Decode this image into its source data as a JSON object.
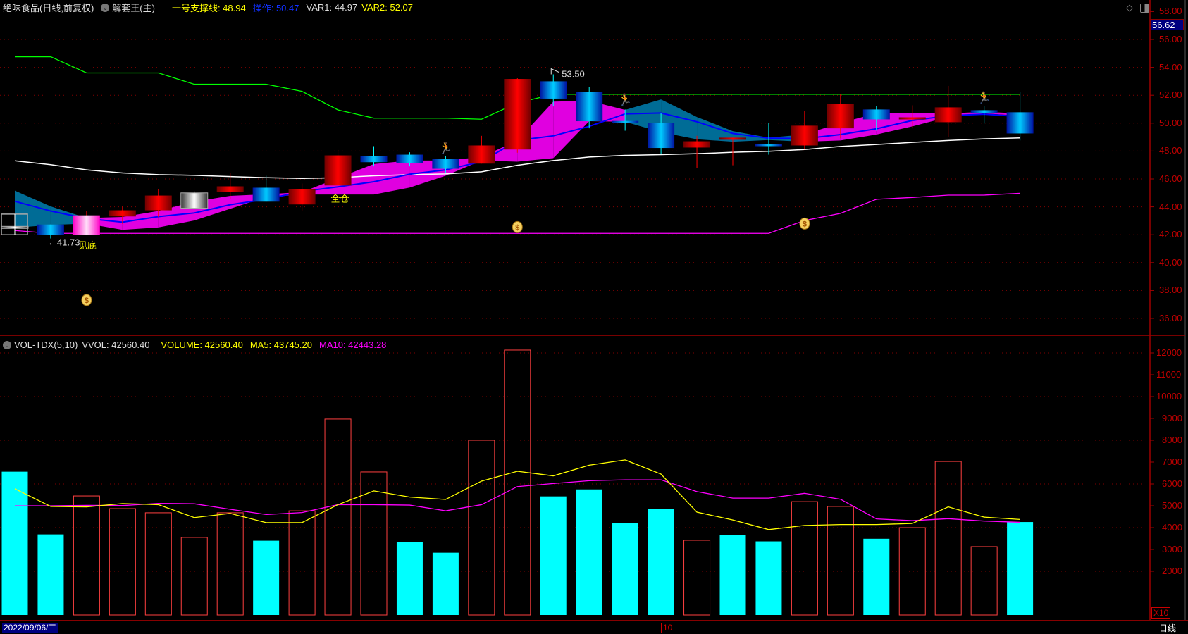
{
  "header": {
    "stock": "绝味食品(日线,前复权)",
    "indicator": "解套王(主)",
    "line1_label": "一号支撑线: 48.94",
    "line2_label": "操作: 50.47",
    "var1_label": "VAR1: 44.97",
    "var2_label": "VAR2: 52.07"
  },
  "vol_header": {
    "name": "VOL-TDX(5,10)",
    "vvol": "VVOL: 42560.40",
    "volume": "VOLUME: 42560.40",
    "ma5": "MA5: 43745.20",
    "ma10": "MA10: 42443.28"
  },
  "last_price": "56.62",
  "price_ticks": [
    "58.00",
    "56.00",
    "54.00",
    "52.00",
    "50.00",
    "48.00",
    "46.00",
    "44.00",
    "42.00",
    "40.00",
    "38.00",
    "36.00"
  ],
  "vol_ticks": [
    "12000",
    "11000",
    "10000",
    "9000",
    "8000",
    "7000",
    "6000",
    "5000",
    "4000",
    "3000",
    "2000"
  ],
  "vol_unit": "X10",
  "bottom": {
    "date": "2022/09/06/二",
    "month_marker": "10",
    "period": "日线"
  },
  "annotations": {
    "low_label": "←41.73",
    "high_label": "53.50",
    "bottom_signal": "见底",
    "full_position": "全仓"
  },
  "colors": {
    "up": "#ff0000",
    "down": "#00c8ff",
    "support": "#ffffff",
    "operate": "#0000ff",
    "var1": "#ff00ff",
    "var2": "#00ff00",
    "vol_up": "#ff4040",
    "vol_down": "#00ffff",
    "ma5": "#ffff00",
    "ma10": "#ff00ff",
    "band_up": "#e000e0",
    "band_down": "#006c96"
  },
  "chart_data": [
    {
      "type": "candlestick",
      "title": "绝味食品(日线,前复权)",
      "ylim": [
        35,
        58.5
      ],
      "candles": [
        {
          "o": 42.6,
          "h": 43.0,
          "l": 42.2,
          "c": 42.5,
          "kind": "gray"
        },
        {
          "o": 42.73,
          "h": 42.73,
          "l": 41.73,
          "c": 42.0,
          "kind": "down"
        },
        {
          "o": 42.0,
          "h": 43.7,
          "l": 42.0,
          "c": 43.39,
          "kind": "pink"
        },
        {
          "o": 43.31,
          "h": 44.03,
          "l": 42.77,
          "c": 43.75,
          "kind": "up"
        },
        {
          "o": 43.75,
          "h": 45.26,
          "l": 43.27,
          "c": 44.81,
          "kind": "up"
        },
        {
          "o": 43.9,
          "h": 45.1,
          "l": 43.85,
          "c": 45.0,
          "kind": "gray"
        },
        {
          "o": 45.08,
          "h": 46.43,
          "l": 44.54,
          "c": 45.47,
          "kind": "up"
        },
        {
          "o": 45.37,
          "h": 46.23,
          "l": 44.37,
          "c": 44.37,
          "kind": "down"
        },
        {
          "o": 44.17,
          "h": 45.67,
          "l": 43.73,
          "c": 45.26,
          "kind": "up"
        },
        {
          "o": 45.53,
          "h": 48.08,
          "l": 45.53,
          "c": 47.69,
          "kind": "up"
        },
        {
          "o": 47.64,
          "h": 48.35,
          "l": 46.9,
          "c": 47.2,
          "kind": "down"
        },
        {
          "o": 47.74,
          "h": 47.91,
          "l": 46.9,
          "c": 47.15,
          "kind": "down"
        },
        {
          "o": 47.44,
          "h": 47.64,
          "l": 46.45,
          "c": 46.73,
          "kind": "down"
        },
        {
          "o": 47.1,
          "h": 49.09,
          "l": 47.1,
          "c": 48.4,
          "kind": "up"
        },
        {
          "o": 48.11,
          "h": 53.22,
          "l": 47.88,
          "c": 53.17,
          "kind": "up"
        },
        {
          "o": 53.0,
          "h": 53.5,
          "l": 51.2,
          "c": 51.76,
          "kind": "down"
        },
        {
          "o": 52.25,
          "h": 52.6,
          "l": 49.63,
          "c": 50.14,
          "kind": "down"
        },
        {
          "o": 50.16,
          "h": 50.98,
          "l": 49.46,
          "c": 50.12,
          "kind": "down"
        },
        {
          "o": 50.02,
          "h": 50.73,
          "l": 47.78,
          "c": 48.22,
          "kind": "down"
        },
        {
          "o": 48.25,
          "h": 49.09,
          "l": 46.78,
          "c": 48.7,
          "kind": "up"
        },
        {
          "o": 48.82,
          "h": 48.96,
          "l": 46.98,
          "c": 48.96,
          "kind": "up"
        },
        {
          "o": 48.5,
          "h": 50.02,
          "l": 47.74,
          "c": 48.48,
          "kind": "down"
        },
        {
          "o": 48.4,
          "h": 50.9,
          "l": 48.11,
          "c": 49.82,
          "kind": "up"
        },
        {
          "o": 49.63,
          "h": 52.1,
          "l": 48.92,
          "c": 51.39,
          "kind": "up"
        },
        {
          "o": 50.98,
          "h": 51.25,
          "l": 49.46,
          "c": 50.27,
          "kind": "down"
        },
        {
          "o": 50.27,
          "h": 51.28,
          "l": 49.63,
          "c": 50.42,
          "kind": "up"
        },
        {
          "o": 50.07,
          "h": 52.67,
          "l": 49.0,
          "c": 51.13,
          "kind": "up"
        },
        {
          "o": 50.93,
          "h": 51.2,
          "l": 49.97,
          "c": 50.73,
          "kind": "down"
        },
        {
          "o": 50.78,
          "h": 52.25,
          "l": 48.76,
          "c": 49.26,
          "kind": "down"
        }
      ],
      "lines": {
        "support": [
          47.3,
          47.02,
          46.65,
          46.43,
          46.31,
          46.26,
          46.17,
          46.09,
          46.04,
          46.09,
          46.23,
          46.31,
          46.36,
          46.51,
          46.98,
          47.32,
          47.57,
          47.69,
          47.74,
          47.81,
          47.91,
          47.98,
          48.11,
          48.33,
          48.47,
          48.62,
          48.76,
          48.87,
          48.94
        ],
        "operate": [
          44.4,
          43.7,
          43.16,
          42.9,
          43.3,
          43.56,
          44.15,
          44.54,
          45.1,
          45.43,
          45.8,
          46.34,
          46.65,
          47.24,
          48.76,
          49.09,
          49.77,
          50.66,
          50.73,
          50.1,
          49.26,
          48.92,
          48.89,
          49.18,
          49.6,
          50.19,
          50.53,
          50.64,
          50.47
        ],
        "var1": [
          42.3,
          42.1,
          42.1,
          42.1,
          42.1,
          42.1,
          42.1,
          42.1,
          42.1,
          42.1,
          42.1,
          42.1,
          42.1,
          42.1,
          42.1,
          42.1,
          42.1,
          42.1,
          42.1,
          42.1,
          42.1,
          42.1,
          43.02,
          43.53,
          44.54,
          44.67,
          44.84,
          44.84,
          44.97
        ],
        "var2": [
          54.76,
          54.76,
          53.6,
          53.6,
          53.6,
          52.79,
          52.79,
          52.79,
          52.28,
          50.95,
          50.36,
          50.36,
          50.36,
          50.28,
          51.45,
          52.07,
          52.07,
          52.07,
          52.07,
          52.07,
          52.07,
          52.07,
          52.07,
          52.07,
          52.07,
          52.07,
          52.07,
          52.07,
          52.07
        ]
      },
      "band": {
        "top": [
          45.16,
          44.03,
          43.2,
          43.27,
          43.7,
          44.37,
          44.79,
          44.9,
          45.05,
          46.06,
          47.07,
          47.32,
          47.32,
          47.57,
          48.76,
          51.54,
          51.6,
          50.95,
          51.7,
          50.44,
          49.43,
          48.96,
          49.18,
          50.02,
          50.7,
          50.73,
          50.7,
          50.81,
          50.7
        ],
        "bottom": [
          42.5,
          42.7,
          42.8,
          42.35,
          42.52,
          43.02,
          43.86,
          44.7,
          44.88,
          44.88,
          44.88,
          45.38,
          46.23,
          47.32,
          47.24,
          47.49,
          50.14,
          50.1,
          49.35,
          48.84,
          48.67,
          48.79,
          48.67,
          48.76,
          49.18,
          49.77,
          50.44,
          50.7,
          50.53
        ],
        "kind": [
          "down",
          "down",
          "up",
          "up",
          "up",
          "up",
          "up",
          "up",
          "up",
          "up",
          "up",
          "up",
          "up",
          "up",
          "up",
          "up",
          "up",
          "down",
          "down",
          "down",
          "down",
          "down",
          "up",
          "up",
          "up",
          "up",
          "up",
          "up",
          "up"
        ]
      },
      "markers": [
        {
          "type": "moneybag",
          "i": 2,
          "price": 37.37
        },
        {
          "type": "moneybag",
          "i": 14,
          "price": 42.6
        },
        {
          "type": "moneybag",
          "i": 22,
          "price": 42.85
        },
        {
          "type": "runner",
          "i": 12,
          "price": 48.25
        },
        {
          "type": "runner",
          "i": 17,
          "price": 51.7
        },
        {
          "type": "runner",
          "i": 27,
          "price": 51.87
        }
      ]
    },
    {
      "type": "bar",
      "title": "VOL-TDX(5,10)",
      "ylabel": "X10",
      "ylim": [
        0,
        12300
      ],
      "values": [
        6560,
        3690,
        5450,
        4870,
        4680,
        3550,
        4680,
        3400,
        4770,
        8970,
        6550,
        3330,
        2850,
        8000,
        12130,
        5430,
        5750,
        4200,
        4850,
        3420,
        3660,
        3370,
        5190,
        4970,
        3490,
        4000,
        7030,
        3130,
        4256
      ],
      "direction": [
        "down",
        "down",
        "up",
        "up",
        "up",
        "up",
        "up",
        "down",
        "up",
        "up",
        "up",
        "down",
        "down",
        "up",
        "up",
        "down",
        "down",
        "down",
        "down",
        "up",
        "down",
        "down",
        "up",
        "up",
        "down",
        "up",
        "up",
        "up",
        "down"
      ],
      "series": [
        {
          "name": "MA5",
          "values": [
            5780,
            4970,
            4950,
            5100,
            5050,
            4460,
            4650,
            4230,
            4230,
            5050,
            5680,
            5400,
            5290,
            6130,
            6580,
            6370,
            6860,
            7100,
            6450,
            4710,
            4350,
            3910,
            4100,
            4140,
            4140,
            4190,
            4950,
            4480,
            4375
          ]
        },
        {
          "name": "MA10",
          "values": [
            5000,
            5000,
            5020,
            5010,
            5110,
            5090,
            4840,
            4600,
            4690,
            5050,
            5050,
            5030,
            4770,
            5050,
            5880,
            6020,
            6150,
            6190,
            6190,
            5650,
            5350,
            5350,
            5570,
            5300,
            4400,
            4320,
            4410,
            4300,
            4244
          ]
        }
      ]
    }
  ]
}
